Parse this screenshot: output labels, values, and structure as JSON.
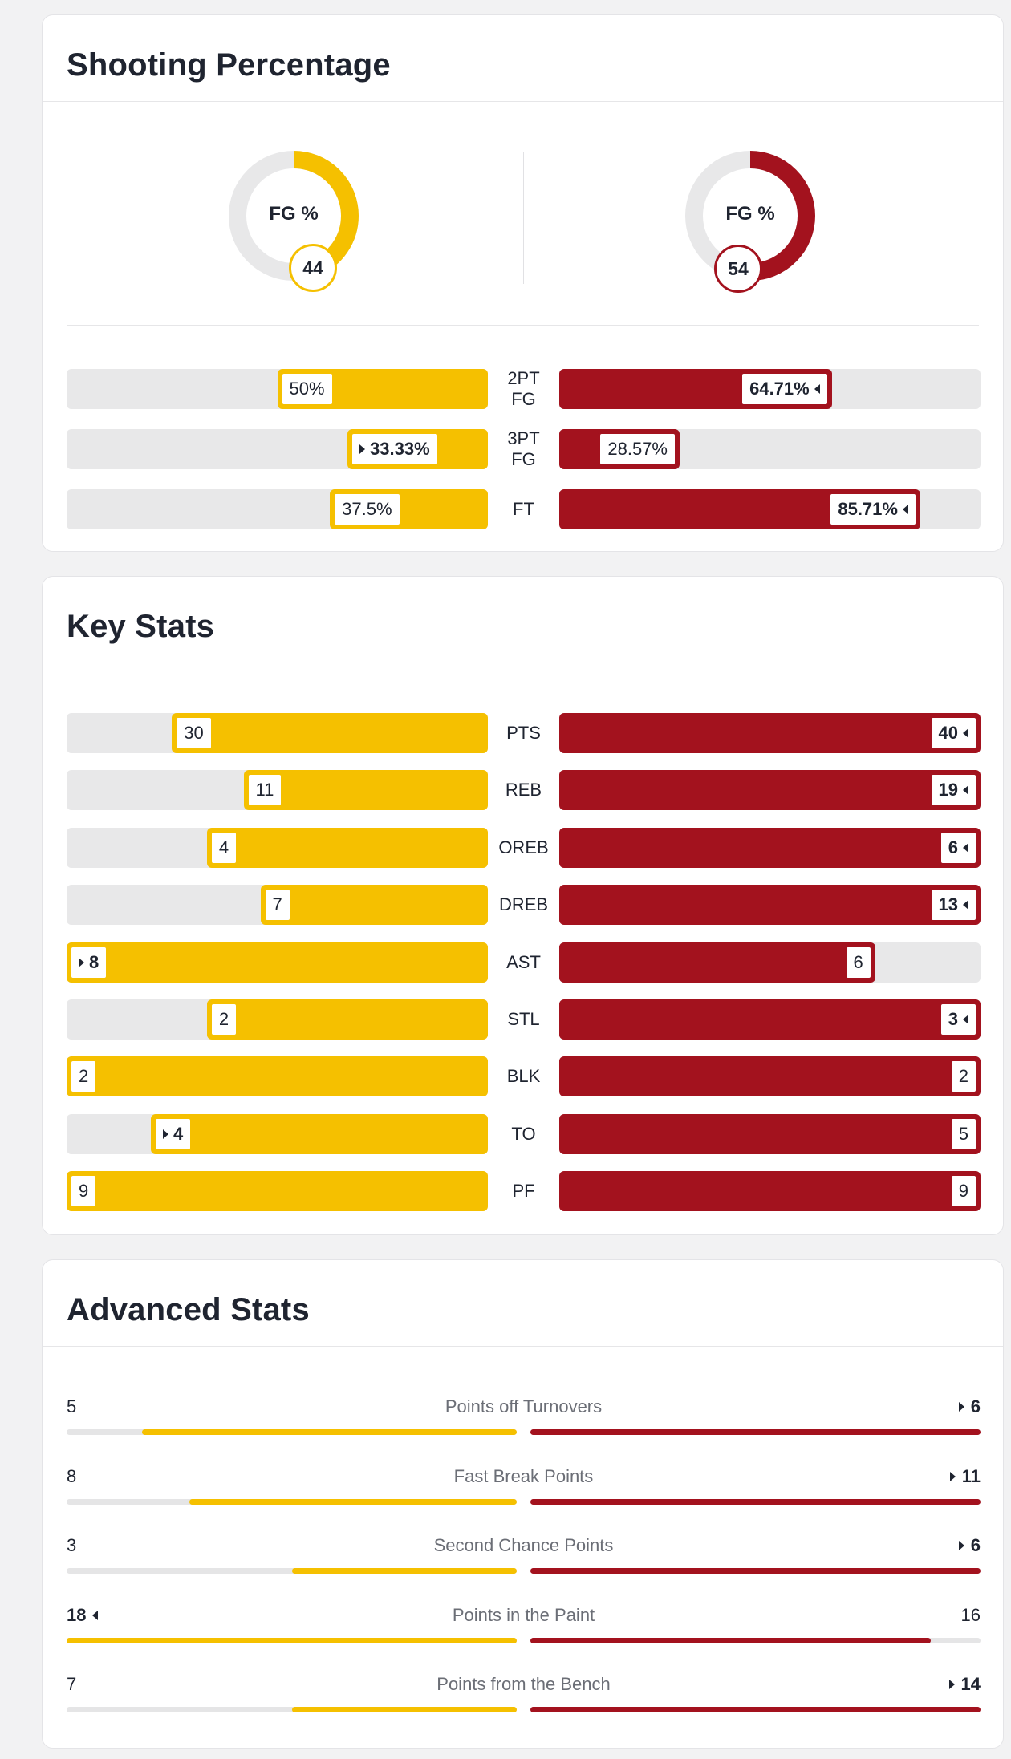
{
  "colors": {
    "team_a": "#f5c000",
    "team_b": "#a3121e",
    "track": "#e8e8e9"
  },
  "shooting": {
    "title": "Shooting Percentage",
    "donuts": [
      {
        "label": "FG %",
        "value": "44",
        "fraction": 0.44,
        "color": "#f5c000"
      },
      {
        "label": "FG %",
        "value": "54",
        "fraction": 0.54,
        "color": "#a3121e"
      }
    ],
    "rows": [
      {
        "label": "2PT FG",
        "left": "50%",
        "left_fraction": 0.5,
        "left_win": false,
        "right": "64.71%",
        "right_fraction": 0.6471,
        "right_win": true
      },
      {
        "label": "3PT FG",
        "left": "33.33%",
        "left_fraction": 0.3333,
        "left_win": true,
        "right": "28.57%",
        "right_fraction": 0.2857,
        "right_win": false
      },
      {
        "label": "FT",
        "left": "37.5%",
        "left_fraction": 0.375,
        "left_win": false,
        "right": "85.71%",
        "right_fraction": 0.8571,
        "right_win": true
      }
    ]
  },
  "key_stats": {
    "title": "Key Stats",
    "rows": [
      {
        "label": "PTS",
        "left": "30",
        "left_fraction": 0.75,
        "left_win": false,
        "right": "40",
        "right_fraction": 1.0,
        "right_win": true
      },
      {
        "label": "REB",
        "left": "11",
        "left_fraction": 0.58,
        "left_win": false,
        "right": "19",
        "right_fraction": 1.0,
        "right_win": true
      },
      {
        "label": "OREB",
        "left": "4",
        "left_fraction": 0.667,
        "left_win": false,
        "right": "6",
        "right_fraction": 1.0,
        "right_win": true
      },
      {
        "label": "DREB",
        "left": "7",
        "left_fraction": 0.54,
        "left_win": false,
        "right": "13",
        "right_fraction": 1.0,
        "right_win": true
      },
      {
        "label": "AST",
        "left": "8",
        "left_fraction": 1.0,
        "left_win": true,
        "right": "6",
        "right_fraction": 0.75,
        "right_win": false
      },
      {
        "label": "STL",
        "left": "2",
        "left_fraction": 0.667,
        "left_win": false,
        "right": "3",
        "right_fraction": 1.0,
        "right_win": true
      },
      {
        "label": "BLK",
        "left": "2",
        "left_fraction": 1.0,
        "left_win": false,
        "right": "2",
        "right_fraction": 1.0,
        "right_win": false
      },
      {
        "label": "TO",
        "left": "4",
        "left_fraction": 0.8,
        "left_win": true,
        "right": "5",
        "right_fraction": 1.0,
        "right_win": false
      },
      {
        "label": "PF",
        "left": "9",
        "left_fraction": 1.0,
        "left_win": false,
        "right": "9",
        "right_fraction": 1.0,
        "right_win": false
      }
    ]
  },
  "advanced": {
    "title": "Advanced Stats",
    "rows": [
      {
        "label": "Points off Turnovers",
        "left": "5",
        "left_fraction": 0.833,
        "left_win": false,
        "right": "6",
        "right_fraction": 1.0,
        "right_win": true
      },
      {
        "label": "Fast Break Points",
        "left": "8",
        "left_fraction": 0.727,
        "left_win": false,
        "right": "11",
        "right_fraction": 1.0,
        "right_win": true
      },
      {
        "label": "Second Chance Points",
        "left": "3",
        "left_fraction": 0.5,
        "left_win": false,
        "right": "6",
        "right_fraction": 1.0,
        "right_win": true
      },
      {
        "label": "Points in the Paint",
        "left": "18",
        "left_fraction": 1.0,
        "left_win": true,
        "right": "16",
        "right_fraction": 0.889,
        "right_win": false
      },
      {
        "label": "Points from the Bench",
        "left": "7",
        "left_fraction": 0.5,
        "left_win": false,
        "right": "14",
        "right_fraction": 1.0,
        "right_win": true
      }
    ]
  }
}
